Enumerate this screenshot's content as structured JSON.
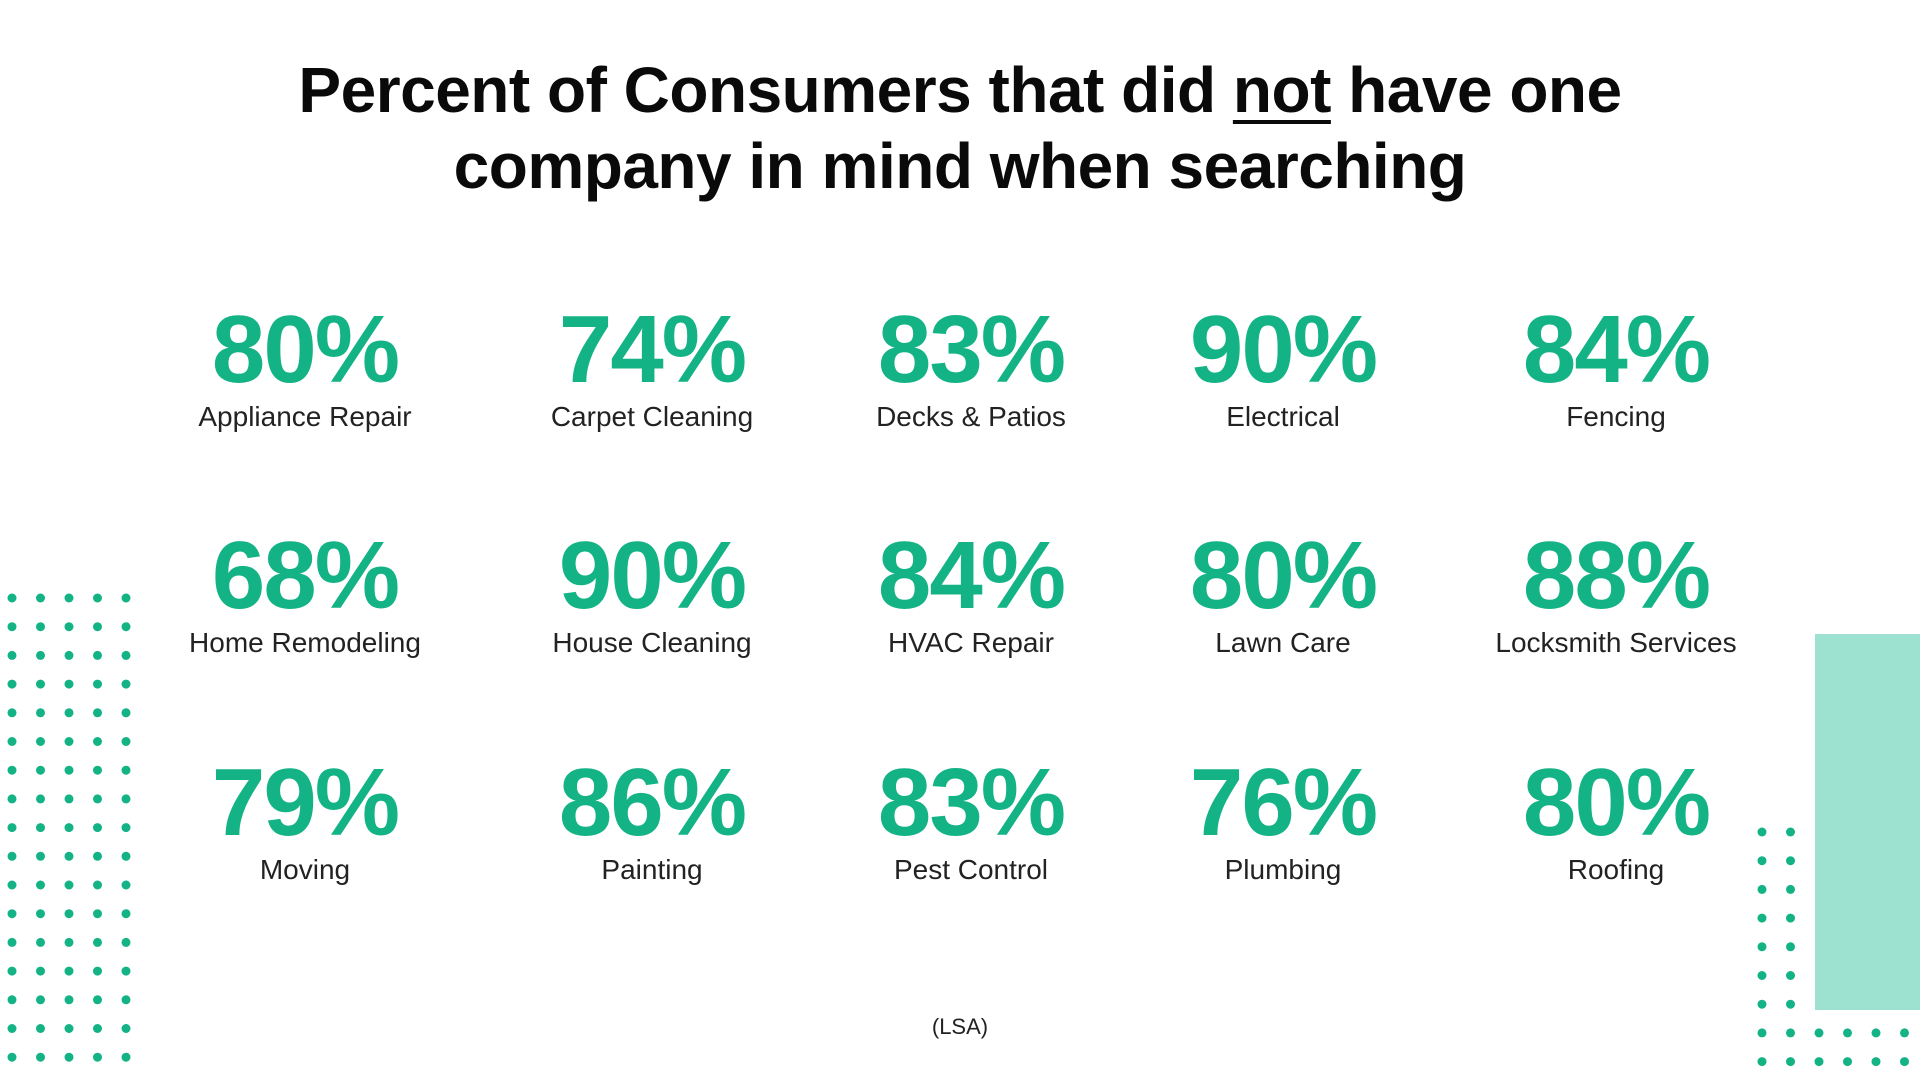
{
  "title": {
    "part1": "Percent of Consumers that did ",
    "underlined": "not",
    "part2": " have one",
    "line2": "company in mind when searching"
  },
  "stats": [
    {
      "value": "80%",
      "label": "Appliance Repair"
    },
    {
      "value": "74%",
      "label": "Carpet Cleaning"
    },
    {
      "value": "83%",
      "label": "Decks & Patios"
    },
    {
      "value": "90%",
      "label": "Electrical"
    },
    {
      "value": "84%",
      "label": "Fencing"
    },
    {
      "value": "68%",
      "label": "Home Remodeling"
    },
    {
      "value": "90%",
      "label": "House Cleaning"
    },
    {
      "value": "84%",
      "label": "HVAC Repair"
    },
    {
      "value": "80%",
      "label": "Lawn Care"
    },
    {
      "value": "88%",
      "label": "Locksmith Services"
    },
    {
      "value": "79%",
      "label": "Moving"
    },
    {
      "value": "86%",
      "label": "Painting"
    },
    {
      "value": "83%",
      "label": "Pest Control"
    },
    {
      "value": "76%",
      "label": "Plumbing"
    },
    {
      "value": "80%",
      "label": "Roofing"
    }
  ],
  "source": "(LSA)",
  "colors": {
    "accent": "#14b386",
    "dot": "#14b386",
    "block": "#9de2d0",
    "text": "#111111"
  }
}
